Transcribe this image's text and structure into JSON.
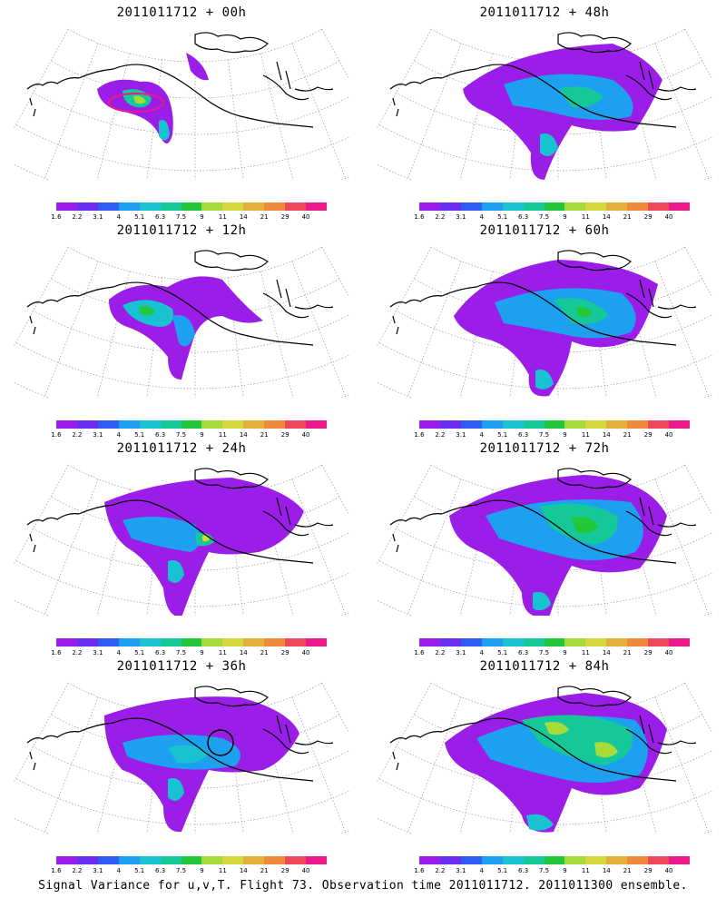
{
  "panels": [
    {
      "title": "2011011712 + 00h"
    },
    {
      "title": "2011011712 + 48h"
    },
    {
      "title": "2011011712 + 12h"
    },
    {
      "title": "2011011712 + 60h"
    },
    {
      "title": "2011011712 + 24h"
    },
    {
      "title": "2011011712 + 72h"
    },
    {
      "title": "2011011712 + 36h"
    },
    {
      "title": "2011011712 + 84h"
    }
  ],
  "colorbar": {
    "labels": [
      "1.6",
      "2.2",
      "3.1",
      "4",
      "5.1",
      "6.3",
      "7.5",
      "9",
      "11",
      "14",
      "21",
      "29",
      "40"
    ],
    "colors": [
      "#9a1ee8",
      "#6a2ef0",
      "#2f5cf2",
      "#1ea0f0",
      "#18c2d0",
      "#14c89a",
      "#22c83a",
      "#a6dc3a",
      "#d6d83a",
      "#e4b03a",
      "#ec8a3a",
      "#ec4a5a",
      "#ec1a8a"
    ]
  },
  "footer": "Signal Variance for u,v,T. Flight 73. Observation time 2011011712. 2011011300 ensemble."
}
